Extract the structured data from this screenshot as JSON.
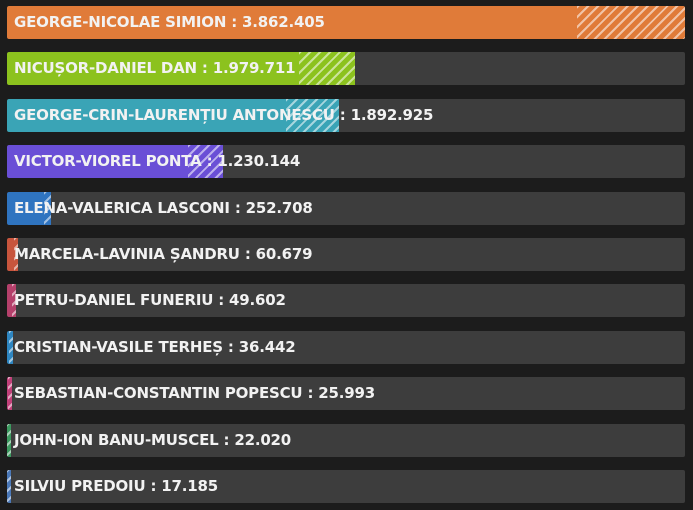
{
  "chart_data": {
    "type": "bar",
    "orientation": "horizontal",
    "categories": [
      "GEORGE-NICOLAE SIMION",
      "NICUȘOR-DANIEL DAN",
      "GEORGE-CRIN-LAURENȚIU ANTONESCU",
      "VICTOR-VIOREL PONTA",
      "ELENA-VALERICA LASCONI",
      "MARCELA-LAVINIA ȘANDRU",
      "PETRU-DANIEL FUNERIU",
      "CRISTIAN-VASILE TERHEȘ",
      "SEBASTIAN-CONSTANTIN POPESCU",
      "JOHN-ION BANU-MUSCEL",
      "SILVIU PREDOIU"
    ],
    "value_labels": [
      "3.862.405",
      "1.979.711",
      "1.892.925",
      "1.230.144",
      "252.708",
      "60.679",
      "49.602",
      "36.442",
      "25.993",
      "22.020",
      "17.185"
    ],
    "values": [
      3862405,
      1979711,
      1892925,
      1230144,
      252708,
      60679,
      49602,
      36442,
      25993,
      22020,
      17185
    ],
    "colors": [
      "#e07b39",
      "#8cc21e",
      "#3aa4b6",
      "#6a4fd6",
      "#2f74c0",
      "#c8553d",
      "#b5406b",
      "#2e86c1",
      "#c2407a",
      "#3c9a5f",
      "#4a78b8"
    ],
    "xlim": [
      0,
      3862405
    ],
    "grid": false,
    "legend": "none",
    "title": "",
    "xlabel": "",
    "ylabel": ""
  }
}
